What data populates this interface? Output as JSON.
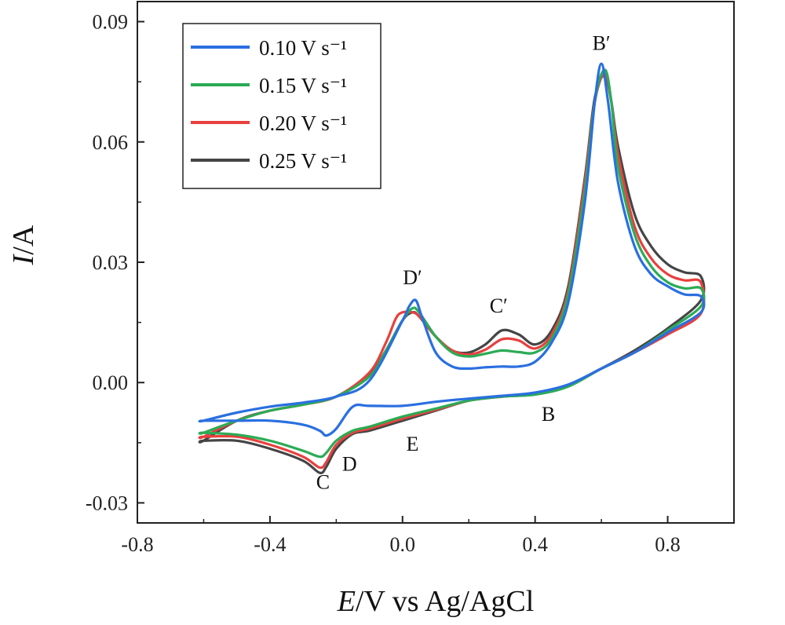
{
  "chart_data": {
    "type": "line",
    "xlabel": {
      "italic": "E",
      "rest": "/V vs Ag/AgCl"
    },
    "ylabel": {
      "italic": "I",
      "rest": "/A"
    },
    "xlim": [
      -0.8,
      1.0
    ],
    "ylim": [
      -0.035,
      0.095
    ],
    "xticks": [
      -0.8,
      -0.4,
      0.0,
      0.4,
      0.8
    ],
    "xtick_labels": [
      "-0.8",
      "-0.4",
      "0.0",
      "0.4",
      "0.8"
    ],
    "yticks": [
      -0.03,
      0.0,
      0.03,
      0.06,
      0.09
    ],
    "ytick_labels": [
      "-0.03",
      "0.00",
      "0.03",
      "0.06",
      "0.09"
    ],
    "grid": false,
    "legend_position": "top-left",
    "annotations": [
      {
        "text": "B′",
        "x": 0.6,
        "y": 0.083
      },
      {
        "text": "D′",
        "x": 0.03,
        "y": 0.0245
      },
      {
        "text": "C′",
        "x": 0.29,
        "y": 0.0175
      },
      {
        "text": "B",
        "x": 0.44,
        "y": -0.0095
      },
      {
        "text": "E",
        "x": 0.03,
        "y": -0.017
      },
      {
        "text": "D",
        "x": -0.16,
        "y": -0.022
      },
      {
        "text": "C",
        "x": -0.24,
        "y": -0.0265
      }
    ],
    "series": [
      {
        "name": "0.10 V s⁻¹",
        "color": "#2a6fe0",
        "x": [
          -0.6,
          -0.5,
          -0.4,
          -0.3,
          -0.2,
          -0.1,
          0.0,
          0.02,
          0.04,
          0.06,
          0.1,
          0.15,
          0.2,
          0.25,
          0.3,
          0.35,
          0.4,
          0.45,
          0.5,
          0.55,
          0.58,
          0.6,
          0.62,
          0.65,
          0.7,
          0.75,
          0.8,
          0.85,
          0.9,
          0.9,
          0.8,
          0.7,
          0.6,
          0.5,
          0.4,
          0.3,
          0.2,
          0.1,
          0.0,
          -0.1,
          -0.15,
          -0.2,
          -0.23,
          -0.25,
          -0.3,
          -0.4,
          -0.5,
          -0.6
        ],
        "y": [
          -0.0095,
          -0.0075,
          -0.006,
          -0.005,
          -0.0035,
          0.0005,
          0.0155,
          0.019,
          0.0205,
          0.016,
          0.0075,
          0.004,
          0.0035,
          0.0038,
          0.004,
          0.004,
          0.0052,
          0.01,
          0.02,
          0.045,
          0.07,
          0.0795,
          0.07,
          0.05,
          0.034,
          0.027,
          0.024,
          0.022,
          0.0215,
          0.0175,
          0.0125,
          0.0075,
          0.0035,
          -0.0005,
          -0.0025,
          -0.0033,
          -0.004,
          -0.0048,
          -0.0058,
          -0.0058,
          -0.006,
          -0.0115,
          -0.0132,
          -0.012,
          -0.0105,
          -0.0095,
          -0.0095,
          -0.0095
        ]
      },
      {
        "name": "0.15 V s⁻¹",
        "color": "#2bab55",
        "x": [
          -0.6,
          -0.5,
          -0.4,
          -0.3,
          -0.2,
          -0.1,
          -0.05,
          0.0,
          0.03,
          0.05,
          0.1,
          0.15,
          0.2,
          0.25,
          0.3,
          0.35,
          0.4,
          0.45,
          0.5,
          0.55,
          0.58,
          0.61,
          0.63,
          0.65,
          0.7,
          0.75,
          0.8,
          0.85,
          0.9,
          0.9,
          0.8,
          0.7,
          0.6,
          0.5,
          0.4,
          0.3,
          0.2,
          0.1,
          0.0,
          -0.1,
          -0.15,
          -0.2,
          -0.23,
          -0.25,
          -0.3,
          -0.4,
          -0.5,
          -0.6
        ],
        "y": [
          -0.0125,
          -0.0095,
          -0.007,
          -0.0055,
          -0.0035,
          0.0015,
          0.008,
          0.0155,
          0.0185,
          0.0175,
          0.0115,
          0.0075,
          0.0065,
          0.0072,
          0.008,
          0.0076,
          0.0075,
          0.011,
          0.022,
          0.048,
          0.07,
          0.078,
          0.07,
          0.054,
          0.037,
          0.029,
          0.025,
          0.0235,
          0.0235,
          0.019,
          0.013,
          0.0075,
          0.0035,
          -0.001,
          -0.003,
          -0.0035,
          -0.0045,
          -0.0065,
          -0.0085,
          -0.011,
          -0.012,
          -0.0145,
          -0.0175,
          -0.0185,
          -0.017,
          -0.0145,
          -0.013,
          -0.0125
        ]
      },
      {
        "name": "0.20 V s⁻¹",
        "color": "#e8403e",
        "x": [
          -0.6,
          -0.5,
          -0.4,
          -0.3,
          -0.2,
          -0.1,
          -0.05,
          -0.02,
          0.0,
          0.03,
          0.05,
          0.1,
          0.15,
          0.2,
          0.25,
          0.3,
          0.35,
          0.4,
          0.45,
          0.5,
          0.55,
          0.58,
          0.61,
          0.63,
          0.65,
          0.7,
          0.75,
          0.8,
          0.85,
          0.9,
          0.9,
          0.8,
          0.7,
          0.6,
          0.5,
          0.4,
          0.3,
          0.2,
          0.1,
          0.0,
          -0.1,
          -0.15,
          -0.2,
          -0.23,
          -0.25,
          -0.3,
          -0.4,
          -0.5,
          -0.6
        ],
        "y": [
          -0.0135,
          -0.0095,
          -0.007,
          -0.0055,
          -0.0035,
          0.0025,
          0.01,
          0.016,
          0.0175,
          0.0175,
          0.0165,
          0.0115,
          0.008,
          0.007,
          0.0082,
          0.0108,
          0.0105,
          0.0085,
          0.012,
          0.023,
          0.05,
          0.07,
          0.077,
          0.07,
          0.057,
          0.039,
          0.031,
          0.027,
          0.0255,
          0.025,
          0.0172,
          0.012,
          0.0075,
          0.0035,
          -0.0008,
          -0.0028,
          -0.0035,
          -0.0045,
          -0.0068,
          -0.009,
          -0.0115,
          -0.0125,
          -0.0155,
          -0.0198,
          -0.0212,
          -0.0185,
          -0.0155,
          -0.0135,
          -0.0135
        ]
      },
      {
        "name": "0.25 V s⁻¹",
        "color": "#454545",
        "x": [
          -0.6,
          -0.5,
          -0.4,
          -0.3,
          -0.2,
          -0.1,
          -0.05,
          0.0,
          0.03,
          0.05,
          0.1,
          0.15,
          0.2,
          0.25,
          0.3,
          0.35,
          0.4,
          0.45,
          0.5,
          0.55,
          0.58,
          0.61,
          0.63,
          0.65,
          0.7,
          0.75,
          0.8,
          0.85,
          0.9,
          0.9,
          0.8,
          0.7,
          0.6,
          0.5,
          0.4,
          0.3,
          0.2,
          0.1,
          0.0,
          -0.1,
          -0.15,
          -0.2,
          -0.23,
          -0.25,
          -0.3,
          -0.4,
          -0.5,
          -0.6
        ],
        "y": [
          -0.0145,
          -0.0095,
          -0.007,
          -0.0055,
          -0.0035,
          0.002,
          0.008,
          0.0155,
          0.0175,
          0.0165,
          0.0115,
          0.008,
          0.0075,
          0.0095,
          0.013,
          0.012,
          0.0095,
          0.013,
          0.024,
          0.051,
          0.071,
          0.0765,
          0.07,
          0.059,
          0.042,
          0.034,
          0.0295,
          0.0275,
          0.0265,
          0.0205,
          0.0135,
          0.008,
          0.0035,
          -0.0008,
          -0.0028,
          -0.0035,
          -0.0045,
          -0.007,
          -0.0095,
          -0.012,
          -0.0128,
          -0.0165,
          -0.021,
          -0.0225,
          -0.0195,
          -0.0165,
          -0.0145,
          -0.0145
        ]
      }
    ]
  }
}
